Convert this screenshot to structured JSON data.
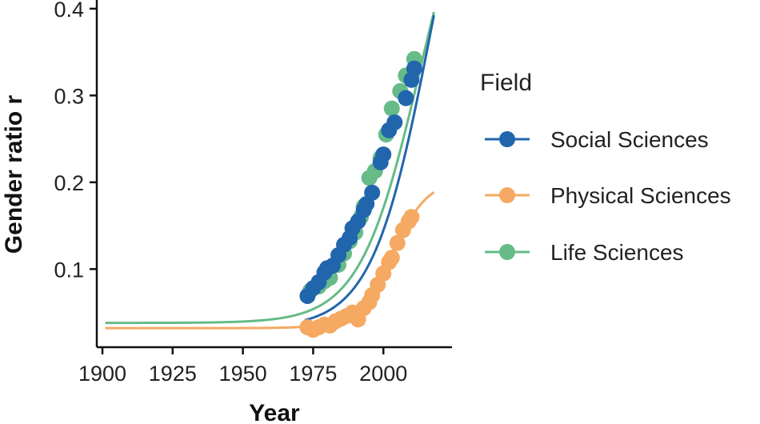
{
  "chart_data": {
    "type": "line",
    "title": "",
    "xlabel": "Year",
    "ylabel": "Gender ratio r",
    "xlim": [
      1898,
      2023
    ],
    "ylim": [
      0.01,
      0.41
    ],
    "xticks": [
      1900,
      1925,
      1950,
      1975,
      2000
    ],
    "yticks": [
      0.1,
      0.2,
      0.3,
      0.4
    ],
    "x_tick_labels": [
      "1900",
      "1925",
      "1950",
      "1975",
      "2000"
    ],
    "y_tick_labels": [
      "0.1",
      "0.2",
      "0.3",
      "0.4"
    ],
    "legend_title": "Field",
    "legend_position": "right",
    "series": [
      {
        "name": "Social Sciences",
        "color": "#2166ac",
        "fit": {
          "lower": 0.032,
          "upper": 0.72,
          "midpoint": 2017,
          "rate": 0.096,
          "x_start": 1972,
          "x_end": 2018
        },
        "points": [
          [
            1973,
            0.069
          ],
          [
            1975,
            0.078
          ],
          [
            1977,
            0.085
          ],
          [
            1979,
            0.096
          ],
          [
            1980,
            0.101
          ],
          [
            1982,
            0.104
          ],
          [
            1984,
            0.116
          ],
          [
            1986,
            0.128
          ],
          [
            1988,
            0.136
          ],
          [
            1989,
            0.147
          ],
          [
            1991,
            0.155
          ],
          [
            1993,
            0.168
          ],
          [
            1994,
            0.175
          ],
          [
            1996,
            0.188
          ],
          [
            1999,
            0.223
          ],
          [
            2000,
            0.232
          ],
          [
            2002,
            0.26
          ],
          [
            2004,
            0.269
          ],
          [
            2008,
            0.297
          ],
          [
            2010,
            0.318
          ],
          [
            2011,
            0.331
          ]
        ]
      },
      {
        "name": "Physical Sciences",
        "color": "#f5a962",
        "fit": {
          "lower": 0.032,
          "upper": 0.205,
          "midpoint": 2003,
          "rate": 0.15,
          "x_start": 1901,
          "x_end": 2018
        },
        "points": [
          [
            1973,
            0.033
          ],
          [
            1975,
            0.03
          ],
          [
            1977,
            0.033
          ],
          [
            1979,
            0.036
          ],
          [
            1981,
            0.035
          ],
          [
            1983,
            0.04
          ],
          [
            1985,
            0.043
          ],
          [
            1987,
            0.046
          ],
          [
            1989,
            0.05
          ],
          [
            1990,
            0.048
          ],
          [
            1991,
            0.042
          ],
          [
            1993,
            0.055
          ],
          [
            1995,
            0.062
          ],
          [
            1996,
            0.07
          ],
          [
            1998,
            0.082
          ],
          [
            2000,
            0.095
          ],
          [
            2002,
            0.108
          ],
          [
            2003,
            0.113
          ],
          [
            2005,
            0.13
          ],
          [
            2007,
            0.145
          ],
          [
            2009,
            0.155
          ],
          [
            2010,
            0.16
          ]
        ]
      },
      {
        "name": "Life Sciences",
        "color": "#66bb88",
        "fit": {
          "lower": 0.038,
          "upper": 0.62,
          "midpoint": 2013,
          "rate": 0.094,
          "x_start": 1901,
          "x_end": 2018
        },
        "points": [
          [
            1974,
            0.075
          ],
          [
            1977,
            0.08
          ],
          [
            1979,
            0.086
          ],
          [
            1981,
            0.09
          ],
          [
            1984,
            0.105
          ],
          [
            1986,
            0.118
          ],
          [
            1988,
            0.132
          ],
          [
            1990,
            0.142
          ],
          [
            1992,
            0.16
          ],
          [
            1993,
            0.172
          ],
          [
            1995,
            0.205
          ],
          [
            1997,
            0.213
          ],
          [
            1999,
            0.228
          ],
          [
            2001,
            0.255
          ],
          [
            2003,
            0.285
          ],
          [
            2006,
            0.305
          ],
          [
            2008,
            0.323
          ],
          [
            2011,
            0.342
          ]
        ]
      }
    ]
  }
}
